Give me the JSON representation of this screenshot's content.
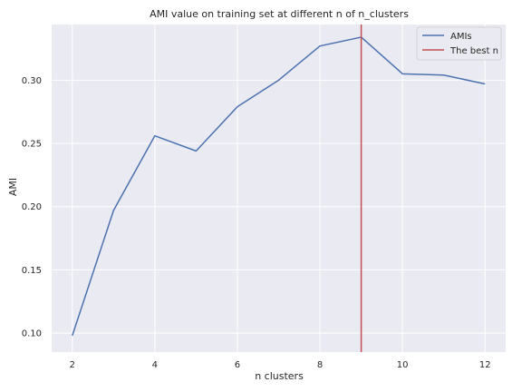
{
  "chart_data": {
    "type": "line",
    "title": "AMI value on training set at different n of n_clusters",
    "xlabel": "n clusters",
    "ylabel": "AMI",
    "xlim": [
      1.5,
      12.5
    ],
    "ylim": [
      0.085,
      0.344
    ],
    "xticks": [
      2,
      4,
      6,
      8,
      10,
      12
    ],
    "xtick_labels": [
      "2",
      "4",
      "6",
      "8",
      "10",
      "12"
    ],
    "yticks": [
      0.1,
      0.15,
      0.2,
      0.25,
      0.3
    ],
    "ytick_labels": [
      "0.10",
      "0.15",
      "0.20",
      "0.25",
      "0.30"
    ],
    "grid": true,
    "legend_position": "top-right",
    "x": [
      2,
      3,
      4,
      5,
      6,
      7,
      8,
      9,
      10,
      11,
      12
    ],
    "series": [
      {
        "name": "AMIs",
        "color": "#4c72b0",
        "values": [
          0.098,
          0.197,
          0.256,
          0.244,
          0.279,
          0.3,
          0.327,
          0.334,
          0.305,
          0.304,
          0.297
        ]
      }
    ],
    "vline": {
      "name": "The best n",
      "x": 9,
      "color": "#c44e52"
    },
    "background": "#eaeaf2"
  }
}
